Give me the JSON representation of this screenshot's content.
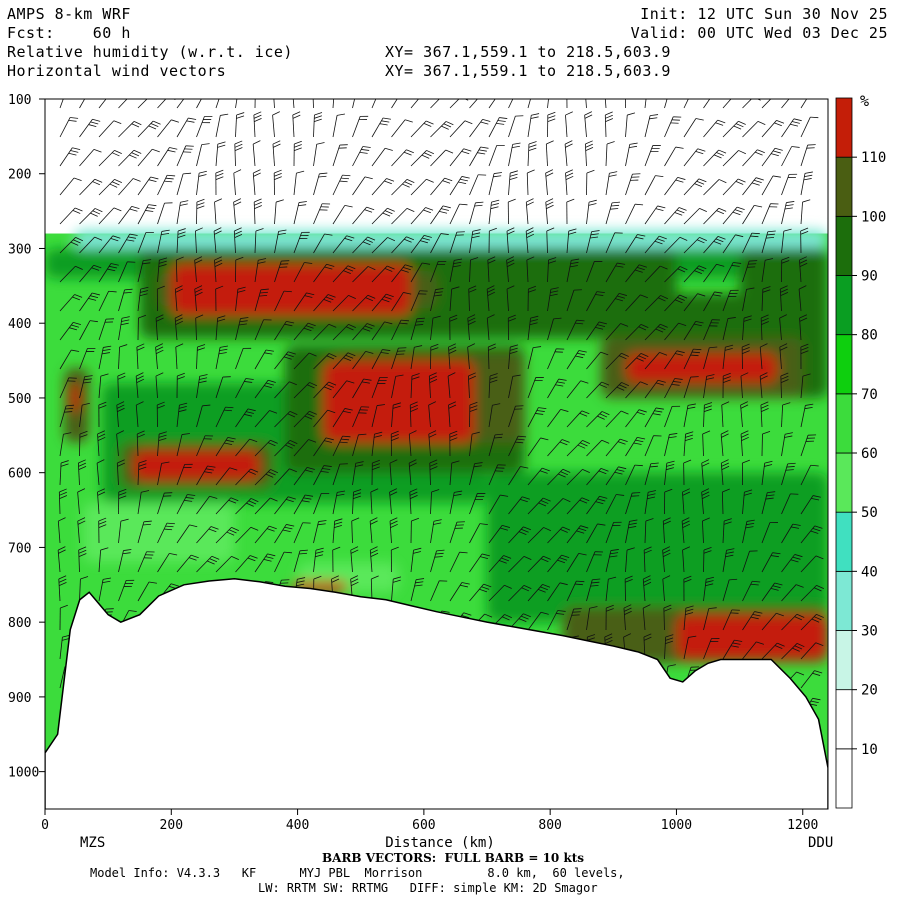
{
  "header": {
    "model": "AMPS 8-km WRF",
    "fcst": "Fcst:    60 h",
    "field1": "Relative humidity (w.r.t. ice)",
    "field2": "Horizontal wind vectors",
    "init": "Init: 12 UTC Sun 30 Nov 25",
    "valid": "Valid: 00 UTC Wed 03 Dec 25",
    "xy1": "XY= 367.1,559.1 to 218.5,603.9",
    "xy2": "XY= 367.1,559.1 to 218.5,603.9"
  },
  "footer": {
    "barb": "BARB VECTORS:  FULL BARB = 10 kts",
    "model_info": "Model Info: V4.3.3   KF      MYJ PBL  Morrison         8.0 km,  60 levels,",
    "physics": "LW: RRTM SW: RRTMG   DIFF: simple KM: 2D Smagor"
  },
  "colors": {
    "c10": "#ffffff",
    "c30": "#c8f5e6",
    "c40": "#7de8d4",
    "c50": "#40e0c0",
    "c60": "#5ae85a",
    "c70": "#3cdc3c",
    "c80": "#0ecf0e",
    "c90": "#0a9e22",
    "c100": "#1c6e0c",
    "c110": "#4a5e12",
    "c120": "#c41e08",
    "terrain": "#ffffff"
  },
  "chart_data": {
    "type": "heatmap",
    "title": "Relative humidity (w.r.t. ice)",
    "xlabel": "Distance (km)",
    "ylabel": "",
    "x_range": [
      0,
      1240
    ],
    "y_range": [
      100,
      1050
    ],
    "y_axis_inverted": true,
    "x_ticks": [
      0,
      200,
      400,
      600,
      800,
      1000,
      1200
    ],
    "y_ticks": [
      100,
      200,
      300,
      400,
      500,
      600,
      700,
      800,
      900,
      1000
    ],
    "x_endpoint_labels": [
      "MZS",
      "DDU"
    ],
    "colorbar": {
      "unit": "%",
      "levels": [
        10,
        20,
        30,
        40,
        50,
        60,
        70,
        80,
        90,
        100,
        110
      ],
      "colors": [
        "#ffffff",
        "#ffffff",
        "#c8f5e6",
        "#7de8d4",
        "#40e0c0",
        "#5ae85a",
        "#3cdc3c",
        "#0ecf0e",
        "#0a9e22",
        "#1c6e0c",
        "#4a5e12",
        "#c41e08"
      ]
    },
    "terrain_surface_hpa": [
      [
        0,
        975
      ],
      [
        20,
        950
      ],
      [
        40,
        810
      ],
      [
        55,
        770
      ],
      [
        70,
        760
      ],
      [
        85,
        775
      ],
      [
        100,
        790
      ],
      [
        120,
        800
      ],
      [
        150,
        790
      ],
      [
        180,
        765
      ],
      [
        220,
        750
      ],
      [
        260,
        745
      ],
      [
        300,
        742
      ],
      [
        340,
        746
      ],
      [
        380,
        752
      ],
      [
        420,
        755
      ],
      [
        460,
        760
      ],
      [
        500,
        766
      ],
      [
        540,
        770
      ],
      [
        580,
        778
      ],
      [
        620,
        786
      ],
      [
        660,
        793
      ],
      [
        700,
        800
      ],
      [
        740,
        806
      ],
      [
        780,
        812
      ],
      [
        820,
        818
      ],
      [
        860,
        825
      ],
      [
        900,
        832
      ],
      [
        940,
        840
      ],
      [
        970,
        850
      ],
      [
        990,
        875
      ],
      [
        1010,
        880
      ],
      [
        1030,
        865
      ],
      [
        1050,
        855
      ],
      [
        1070,
        850
      ],
      [
        1110,
        850
      ],
      [
        1150,
        850
      ],
      [
        1180,
        875
      ],
      [
        1205,
        900
      ],
      [
        1225,
        930
      ],
      [
        1240,
        995
      ]
    ],
    "moist_layer_top_hpa": 280,
    "rh_regions": [
      {
        "level": 110,
        "x": [
          200,
          580
        ],
        "p": [
          320,
          390
        ]
      },
      {
        "level": 110,
        "x": [
          440,
          680
        ],
        "p": [
          450,
          560
        ]
      },
      {
        "level": 110,
        "x": [
          140,
          340
        ],
        "p": [
          570,
          610
        ]
      },
      {
        "level": 110,
        "x": [
          920,
          1160
        ],
        "p": [
          440,
          480
        ]
      },
      {
        "level": 110,
        "x": [
          1000,
          1240
        ],
        "p": [
          790,
          850
        ]
      },
      {
        "level": 120,
        "x": [
          390,
          480
        ],
        "p": [
          745,
          760
        ]
      },
      {
        "level": 120,
        "x": [
          40,
          55
        ],
        "p": [
          480,
          520
        ]
      }
    ],
    "wind_barbs": "FULL BARB = 10 kts"
  }
}
